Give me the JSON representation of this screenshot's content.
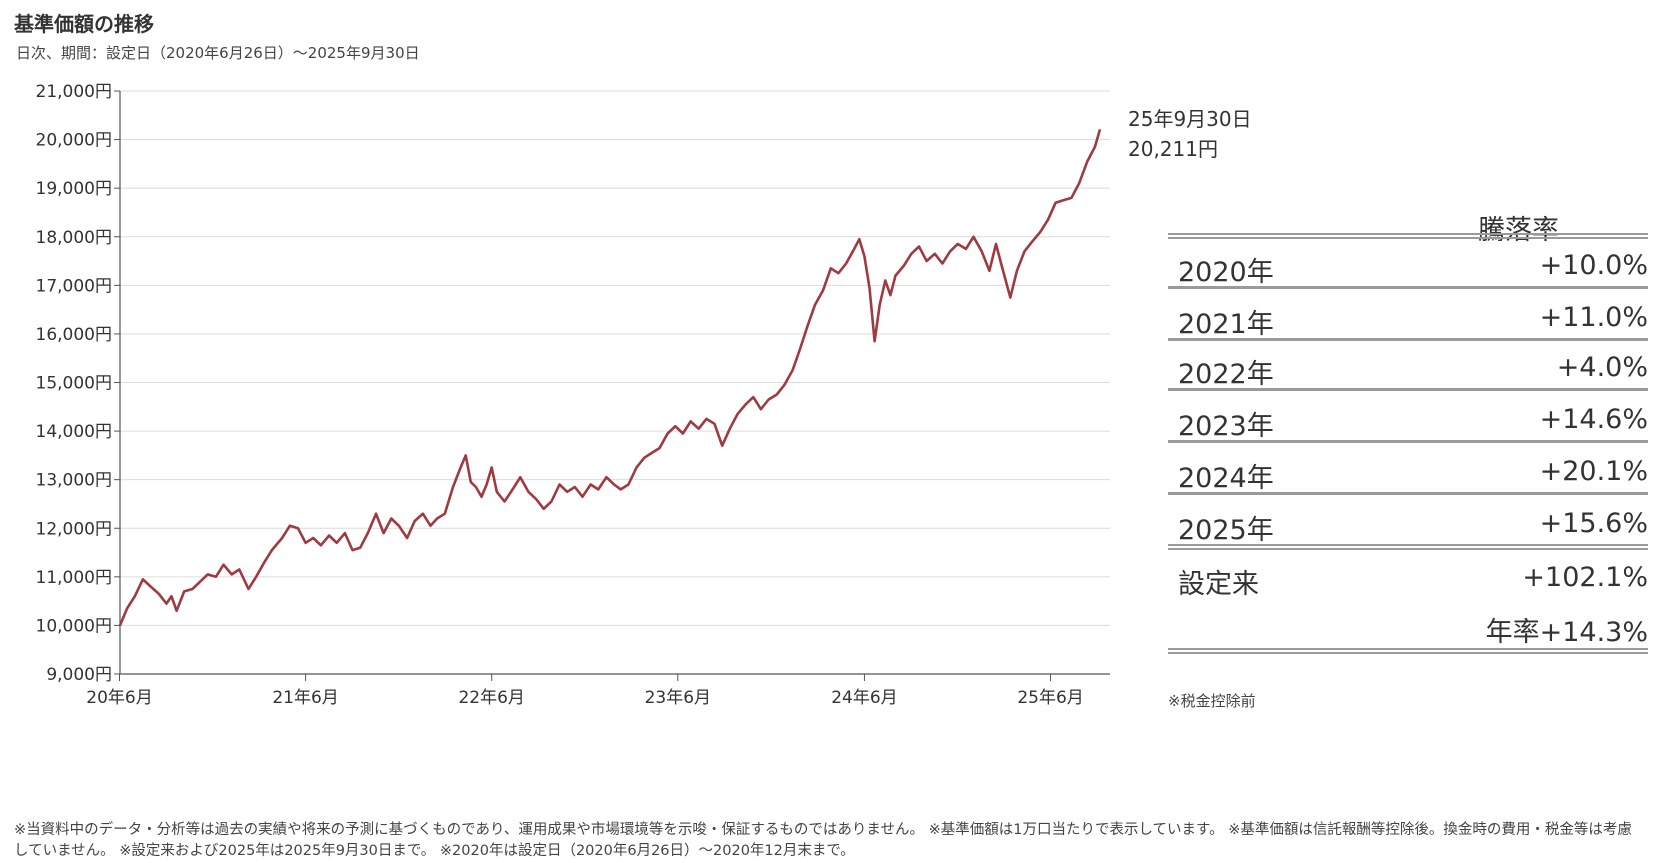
{
  "header": {
    "title": "基準価額の推移",
    "subtitle": "日次、期間：設定日（2020年6月26日）～2025年9月30日"
  },
  "latest": {
    "date": "25年9月30日",
    "value": "20,211円"
  },
  "performance_table": {
    "header": "騰落率",
    "rows": [
      {
        "label": "2020年",
        "value": "+10.0%"
      },
      {
        "label": "2021年",
        "value": "+11.0%"
      },
      {
        "label": "2022年",
        "value": "+4.0%"
      },
      {
        "label": "2023年",
        "value": "+14.6%"
      },
      {
        "label": "2024年",
        "value": "+20.1%"
      },
      {
        "label": "2025年",
        "value": "+15.6%"
      },
      {
        "label": "設定来",
        "value": "+102.1%"
      }
    ],
    "annualized": "年率+14.3%",
    "note": "※税金控除前"
  },
  "disclaimer": "※当資料中のデータ・分析等は過去の実績や将来の予測に基づくものであり、運用成果や市場環境等を示唆・保証するものではありません。 ※基準価額は1万口当たりで表示しています。 ※基準価額は信託報酬等控除後。換金時の費用・税金等は考慮していません。 ※設定来および2025年は2025年9月30日まで。 ※2020年は設定日（2020年6月26日）～2020年12月末まで。",
  "chart_data": {
    "type": "line",
    "title": "基準価額の推移",
    "ylim": [
      9000,
      21000
    ],
    "y_ticks": [
      9000,
      10000,
      11000,
      12000,
      13000,
      14000,
      15000,
      16000,
      17000,
      18000,
      19000,
      20000,
      21000
    ],
    "y_tick_labels": [
      "9,000円",
      "10,000円",
      "11,000円",
      "12,000円",
      "13,000円",
      "14,000円",
      "15,000円",
      "16,000円",
      "17,000円",
      "18,000円",
      "19,000円",
      "20,000円",
      "21,000円"
    ],
    "x_ticks": [
      "2020-06",
      "2021-06",
      "2022-06",
      "2023-06",
      "2024-06",
      "2025-06"
    ],
    "x_tick_labels": [
      "20年6月",
      "21年6月",
      "22年6月",
      "23年6月",
      "24年6月",
      "25年6月"
    ],
    "x_range": [
      "2020-06-26",
      "2025-09-30"
    ],
    "grid": true,
    "line_color": "#9e3a40",
    "series": [
      {
        "points": [
          [
            "2020-06-26",
            10000
          ],
          [
            "2020-07-10",
            10350
          ],
          [
            "2020-07-25",
            10600
          ],
          [
            "2020-08-10",
            10950
          ],
          [
            "2020-08-25",
            10800
          ],
          [
            "2020-09-10",
            10650
          ],
          [
            "2020-09-25",
            10450
          ],
          [
            "2020-10-05",
            10600
          ],
          [
            "2020-10-15",
            10300
          ],
          [
            "2020-10-30",
            10700
          ],
          [
            "2020-11-15",
            10750
          ],
          [
            "2020-11-30",
            10900
          ],
          [
            "2020-12-15",
            11050
          ],
          [
            "2020-12-31",
            11000
          ],
          [
            "2021-01-15",
            11250
          ],
          [
            "2021-01-31",
            11050
          ],
          [
            "2021-02-15",
            11150
          ],
          [
            "2021-03-05",
            10750
          ],
          [
            "2021-03-20",
            11000
          ],
          [
            "2021-04-05",
            11300
          ],
          [
            "2021-04-20",
            11550
          ],
          [
            "2021-05-10",
            11800
          ],
          [
            "2021-05-25",
            12050
          ],
          [
            "2021-06-10",
            12000
          ],
          [
            "2021-06-25",
            11700
          ],
          [
            "2021-07-10",
            11800
          ],
          [
            "2021-07-25",
            11650
          ],
          [
            "2021-08-10",
            11850
          ],
          [
            "2021-08-25",
            11700
          ],
          [
            "2021-09-10",
            11900
          ],
          [
            "2021-09-25",
            11550
          ],
          [
            "2021-10-10",
            11600
          ],
          [
            "2021-10-25",
            11900
          ],
          [
            "2021-11-10",
            12300
          ],
          [
            "2021-11-25",
            11900
          ],
          [
            "2021-12-10",
            12200
          ],
          [
            "2021-12-25",
            12050
          ],
          [
            "2022-01-10",
            11800
          ],
          [
            "2022-01-25",
            12150
          ],
          [
            "2022-02-10",
            12300
          ],
          [
            "2022-02-25",
            12050
          ],
          [
            "2022-03-10",
            12200
          ],
          [
            "2022-03-25",
            12300
          ],
          [
            "2022-04-10",
            12850
          ],
          [
            "2022-04-25",
            13250
          ],
          [
            "2022-05-05",
            13500
          ],
          [
            "2022-05-15",
            12950
          ],
          [
            "2022-05-25",
            12850
          ],
          [
            "2022-06-05",
            12650
          ],
          [
            "2022-06-15",
            12900
          ],
          [
            "2022-06-25",
            13250
          ],
          [
            "2022-07-05",
            12750
          ],
          [
            "2022-07-20",
            12550
          ],
          [
            "2022-08-05",
            12800
          ],
          [
            "2022-08-20",
            13050
          ],
          [
            "2022-09-05",
            12750
          ],
          [
            "2022-09-20",
            12600
          ],
          [
            "2022-10-05",
            12400
          ],
          [
            "2022-10-20",
            12550
          ],
          [
            "2022-11-05",
            12900
          ],
          [
            "2022-11-20",
            12750
          ],
          [
            "2022-12-05",
            12850
          ],
          [
            "2022-12-20",
            12650
          ],
          [
            "2023-01-05",
            12900
          ],
          [
            "2023-01-20",
            12800
          ],
          [
            "2023-02-05",
            13050
          ],
          [
            "2023-02-20",
            12900
          ],
          [
            "2023-03-05",
            12800
          ],
          [
            "2023-03-20",
            12900
          ],
          [
            "2023-04-05",
            13250
          ],
          [
            "2023-04-20",
            13450
          ],
          [
            "2023-05-05",
            13550
          ],
          [
            "2023-05-20",
            13650
          ],
          [
            "2023-06-05",
            13950
          ],
          [
            "2023-06-20",
            14100
          ],
          [
            "2023-07-05",
            13950
          ],
          [
            "2023-07-20",
            14200
          ],
          [
            "2023-08-05",
            14050
          ],
          [
            "2023-08-20",
            14250
          ],
          [
            "2023-09-05",
            14150
          ],
          [
            "2023-09-20",
            13700
          ],
          [
            "2023-10-05",
            14050
          ],
          [
            "2023-10-20",
            14350
          ],
          [
            "2023-11-05",
            14550
          ],
          [
            "2023-11-20",
            14700
          ],
          [
            "2023-12-05",
            14450
          ],
          [
            "2023-12-20",
            14650
          ],
          [
            "2024-01-05",
            14750
          ],
          [
            "2024-01-20",
            14950
          ],
          [
            "2024-02-05",
            15250
          ],
          [
            "2024-02-20",
            15700
          ],
          [
            "2024-03-05",
            16150
          ],
          [
            "2024-03-20",
            16600
          ],
          [
            "2024-04-05",
            16900
          ],
          [
            "2024-04-20",
            17350
          ],
          [
            "2024-05-05",
            17250
          ],
          [
            "2024-05-20",
            17450
          ],
          [
            "2024-06-05",
            17750
          ],
          [
            "2024-06-15",
            17950
          ],
          [
            "2024-06-25",
            17600
          ],
          [
            "2024-07-05",
            16950
          ],
          [
            "2024-07-15",
            15850
          ],
          [
            "2024-07-25",
            16600
          ],
          [
            "2024-08-05",
            17100
          ],
          [
            "2024-08-15",
            16800
          ],
          [
            "2024-08-25",
            17200
          ],
          [
            "2024-09-10",
            17400
          ],
          [
            "2024-09-25",
            17650
          ],
          [
            "2024-10-10",
            17800
          ],
          [
            "2024-10-25",
            17500
          ],
          [
            "2024-11-10",
            17650
          ],
          [
            "2024-11-25",
            17450
          ],
          [
            "2024-12-10",
            17700
          ],
          [
            "2024-12-25",
            17850
          ],
          [
            "2025-01-10",
            17750
          ],
          [
            "2025-01-25",
            18000
          ],
          [
            "2025-02-10",
            17700
          ],
          [
            "2025-02-25",
            17300
          ],
          [
            "2025-03-10",
            17850
          ],
          [
            "2025-03-20",
            17450
          ],
          [
            "2025-04-07",
            16750
          ],
          [
            "2025-04-20",
            17300
          ],
          [
            "2025-05-05",
            17700
          ],
          [
            "2025-05-20",
            17900
          ],
          [
            "2025-06-05",
            18100
          ],
          [
            "2025-06-20",
            18350
          ],
          [
            "2025-07-05",
            18700
          ],
          [
            "2025-07-20",
            18750
          ],
          [
            "2025-08-05",
            18800
          ],
          [
            "2025-08-20",
            19100
          ],
          [
            "2025-09-05",
            19550
          ],
          [
            "2025-09-20",
            19850
          ],
          [
            "2025-09-30",
            20211
          ]
        ]
      }
    ]
  }
}
